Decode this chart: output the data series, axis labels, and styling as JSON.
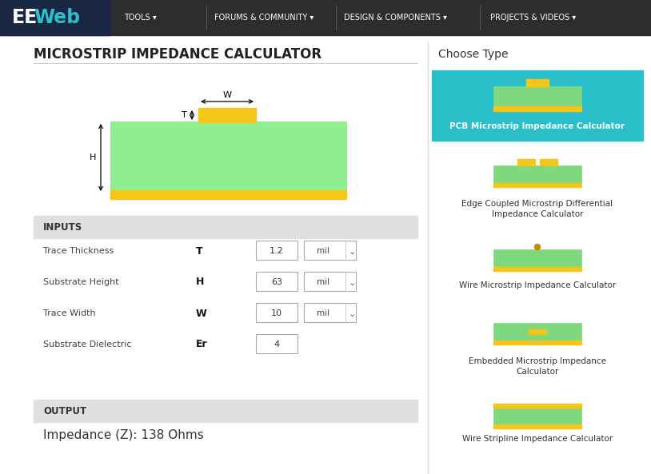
{
  "title": "MICROSTRIP IMPEDANCE CALCULATOR",
  "nav_items": [
    "TOOLS ▾",
    "FORUMS & COMMUNITY ▾",
    "DESIGN & COMPONENTS ▾",
    "PROJECTS & VIDEOS ▾"
  ],
  "choose_type": "Choose Type",
  "pcb_label": "PCB Microstrip Impedance Calculator",
  "pcb_teal": "#2bbfc9",
  "edge_coupled_label": "Edge Coupled Microstrip Differential\nImpedance Calculator",
  "wire_micro_label": "Wire Microstrip Impedance Calculator",
  "embedded_label": "Embedded Microstrip Impedance\nCalculator",
  "wire_strip_label": "Wire Stripline Impedance Calculator",
  "inputs_label": "INPUTS",
  "output_label": "OUTPUT",
  "impedance_result": "Impedance (Z): 138 Ohms",
  "fields": [
    {
      "label": "Trace Thickness",
      "sym": "T",
      "value": "1.2",
      "unit": "mil"
    },
    {
      "label": "Substrate Height",
      "sym": "H",
      "value": "63",
      "unit": "mil"
    },
    {
      "label": "Trace Width",
      "sym": "W",
      "value": "10",
      "unit": "mil"
    },
    {
      "label": "Substrate Dielectric",
      "sym": "Er",
      "value": "4",
      "unit": null
    }
  ],
  "green_sub": "#90EE90",
  "green_card": "#7ed87e",
  "gold": "#DAA520",
  "gold_bright": "#f5c518",
  "page_bg": "#ffffff",
  "nav_bg": "#2d2d2d",
  "nav_logo_bg": "#1a2744",
  "section_bg": "#e0e0e0",
  "border_color": "#aaaaaa",
  "nav_sep": "#555555",
  "diag_border": "#cccccc"
}
